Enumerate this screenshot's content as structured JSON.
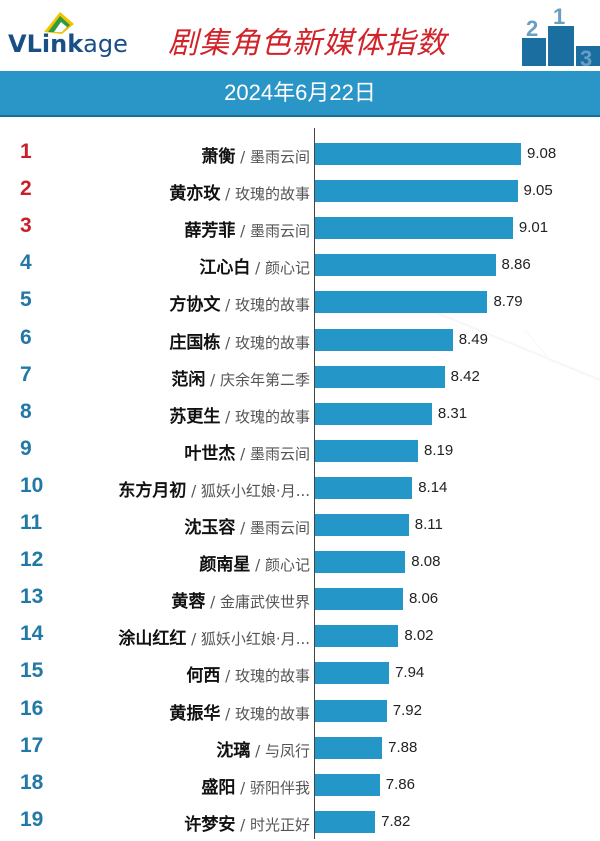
{
  "header": {
    "logo": {
      "part1": "VL",
      "part2": "ink",
      "part3": "age"
    },
    "title": "剧集角色新媒体指数",
    "podium_numbers": [
      "2",
      "1",
      "3"
    ],
    "date": "2024年6月22日"
  },
  "colors": {
    "bar": "#2596c8",
    "header_band": "#2a95c7",
    "title": "#d1232a",
    "rank_top3": "#c8202a",
    "rank_other": "#2278a6"
  },
  "chart_data": {
    "type": "bar",
    "orientation": "horizontal",
    "title": "剧集角色新媒体指数",
    "subtitle": "2024年6月22日",
    "rows": [
      {
        "rank": "1",
        "name": "萧衡",
        "drama": "墨雨云间",
        "value": 9.08
      },
      {
        "rank": "2",
        "name": "黄亦玫",
        "drama": "玫瑰的故事",
        "value": 9.05
      },
      {
        "rank": "3",
        "name": "薛芳菲",
        "drama": "墨雨云间",
        "value": 9.01
      },
      {
        "rank": "4",
        "name": "江心白",
        "drama": "颜心记",
        "value": 8.86
      },
      {
        "rank": "5",
        "name": "方协文",
        "drama": "玫瑰的故事",
        "value": 8.79
      },
      {
        "rank": "6",
        "name": "庄国栋",
        "drama": "玫瑰的故事",
        "value": 8.49
      },
      {
        "rank": "7",
        "name": "范闲",
        "drama": "庆余年第二季",
        "value": 8.42
      },
      {
        "rank": "8",
        "name": "苏更生",
        "drama": "玫瑰的故事",
        "value": 8.31
      },
      {
        "rank": "9",
        "name": "叶世杰",
        "drama": "墨雨云间",
        "value": 8.19
      },
      {
        "rank": "10",
        "name": "东方月初",
        "drama": "狐妖小红娘·月...",
        "value": 8.14
      },
      {
        "rank": "11",
        "name": "沈玉容",
        "drama": "墨雨云间",
        "value": 8.11
      },
      {
        "rank": "12",
        "name": "颜南星",
        "drama": "颜心记",
        "value": 8.08
      },
      {
        "rank": "13",
        "name": "黄蓉",
        "drama": "金庸武侠世界",
        "value": 8.06
      },
      {
        "rank": "14",
        "name": "涂山红红",
        "drama": "狐妖小红娘·月...",
        "value": 8.02
      },
      {
        "rank": "15",
        "name": "何西",
        "drama": "玫瑰的故事",
        "value": 7.94
      },
      {
        "rank": "16",
        "name": "黄振华",
        "drama": "玫瑰的故事",
        "value": 7.92
      },
      {
        "rank": "17",
        "name": "沈璃",
        "drama": "与凤行",
        "value": 7.88
      },
      {
        "rank": "18",
        "name": "盛阳",
        "drama": "骄阳伴我",
        "value": 7.86
      },
      {
        "rank": "19",
        "name": "许梦安",
        "drama": "时光正好",
        "value": 7.82
      }
    ],
    "xlim": [
      7.3,
      9.08
    ],
    "grid": false,
    "legend": "none"
  }
}
